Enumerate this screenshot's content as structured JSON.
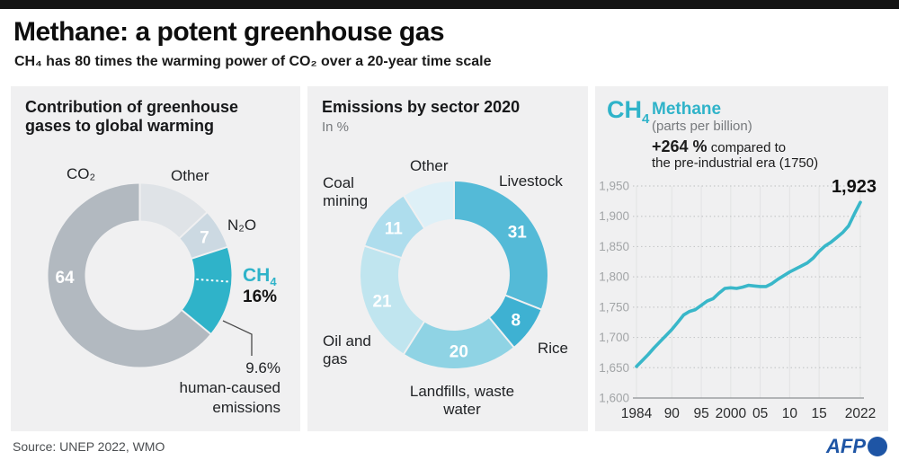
{
  "page": {
    "title": "Methane: a potent greenhouse gas",
    "subtitle": "CH₄ has 80 times the warming power of CO₂ over a 20-year time scale"
  },
  "footer": {
    "source": "Source: UNEP 2022, WMO",
    "brand": "AFP"
  },
  "colors": {
    "accent_teal": "#2fb3c9",
    "afp_blue": "#1e55a5",
    "panel_bg": "#f0f0f1"
  },
  "panels": {
    "ghg": {
      "title": "Contribution of greenhouse gases to global warming",
      "ch4_prefix": "CH",
      "ch4_sub": "4",
      "ch4_value": "16%",
      "annotation": "9.6%\nhuman-caused\nemissions"
    },
    "sector": {
      "title": "Emissions by sector 2020",
      "subtitle": "In %"
    },
    "trend": {
      "ch4_prefix": "CH",
      "ch4_sub": "4",
      "name": "Methane",
      "unit": "(parts per billion)",
      "note_bold": "+264 %",
      "note_rest": " compared to",
      "note_line2": "the pre-industrial era (1750)",
      "end_label": "1,923"
    }
  },
  "chart_data": [
    {
      "id": "ghg-contribution-donut",
      "type": "pie",
      "title": "Contribution of greenhouse gases to global warming",
      "unit": "%",
      "segments": [
        {
          "label": "Other",
          "value": 13,
          "color": "#dfe3e7",
          "show_value": false
        },
        {
          "label": "N₂O",
          "value": 7,
          "color": "#ccd9e2",
          "show_value": true
        },
        {
          "label": "CH₄",
          "value": 16,
          "color": "#2fb3c9",
          "show_value": false
        },
        {
          "label": "CO₂",
          "value": 64,
          "color": "#b2b9c0",
          "show_value": true
        }
      ],
      "ch4_display_value": "16%",
      "annotation": "9.6% human-caused emissions"
    },
    {
      "id": "emissions-by-sector-donut",
      "type": "pie",
      "title": "Emissions by sector 2020",
      "unit": "%",
      "segments": [
        {
          "label": "Livestock",
          "value": 31,
          "color": "#54bad7",
          "show_value": true
        },
        {
          "label": "Rice",
          "value": 8,
          "color": "#3eb1d2",
          "show_value": true
        },
        {
          "label": "Landfills, waste water",
          "value": 20,
          "color": "#8fd3e4",
          "show_value": true
        },
        {
          "label": "Oil and gas",
          "value": 21,
          "color": "#c0e5ef",
          "show_value": true
        },
        {
          "label": "Coal mining",
          "value": 11,
          "color": "#aedded",
          "show_value": true
        },
        {
          "label": "Other",
          "value": 9,
          "color": "#def0f7",
          "show_value": false
        }
      ]
    },
    {
      "id": "methane-concentration-line",
      "type": "line",
      "title": "Methane (parts per billion)",
      "line_color": "#39b7c9",
      "ylim": [
        1600,
        1950
      ],
      "end_label": "1,923",
      "yticks": [
        {
          "v": 1600,
          "label": "1,600"
        },
        {
          "v": 1650,
          "label": "1,650"
        },
        {
          "v": 1700,
          "label": "1,700"
        },
        {
          "v": 1750,
          "label": "1,750"
        },
        {
          "v": 1800,
          "label": "1,800"
        },
        {
          "v": 1850,
          "label": "1,850"
        },
        {
          "v": 1900,
          "label": "1,900"
        },
        {
          "v": 1950,
          "label": "1,950"
        }
      ],
      "xticks": [
        {
          "v": 1984,
          "label": "1984"
        },
        {
          "v": 1990,
          "label": "90"
        },
        {
          "v": 1995,
          "label": "95"
        },
        {
          "v": 2000,
          "label": "2000"
        },
        {
          "v": 2005,
          "label": "05"
        },
        {
          "v": 2010,
          "label": "10"
        },
        {
          "v": 2015,
          "label": "15"
        },
        {
          "v": 2022,
          "label": "2022"
        }
      ],
      "years": [
        1984,
        1985,
        1986,
        1987,
        1988,
        1989,
        1990,
        1991,
        1992,
        1993,
        1994,
        1995,
        1996,
        1997,
        1998,
        1999,
        2000,
        2001,
        2002,
        2003,
        2004,
        2005,
        2006,
        2007,
        2008,
        2009,
        2010,
        2011,
        2012,
        2013,
        2014,
        2015,
        2016,
        2017,
        2018,
        2019,
        2020,
        2021,
        2022
      ],
      "values": [
        1652,
        1662,
        1672,
        1683,
        1693,
        1703,
        1713,
        1725,
        1737,
        1743,
        1746,
        1753,
        1760,
        1764,
        1773,
        1781,
        1782,
        1781,
        1783,
        1786,
        1785,
        1784,
        1784,
        1789,
        1796,
        1802,
        1808,
        1813,
        1818,
        1823,
        1831,
        1842,
        1851,
        1857,
        1865,
        1873,
        1884,
        1904,
        1923
      ]
    }
  ]
}
